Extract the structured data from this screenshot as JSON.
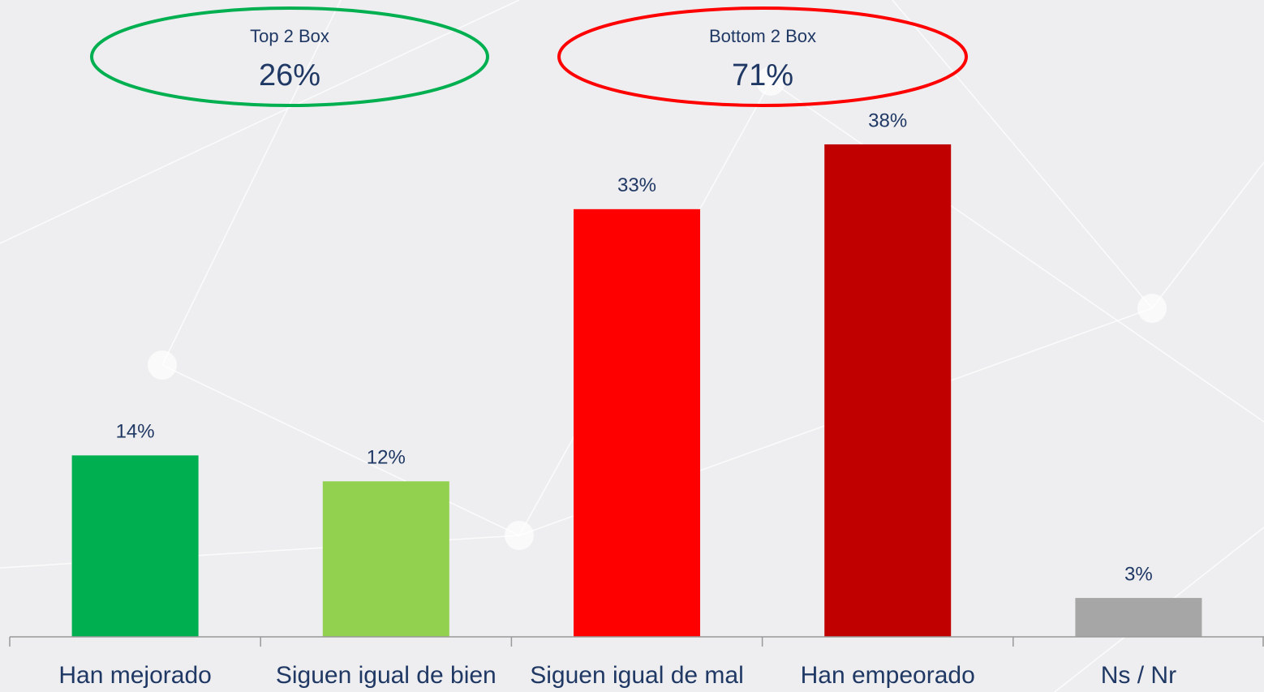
{
  "chart_data": {
    "type": "bar",
    "categories": [
      "Han mejorado",
      "Siguen igual de bien",
      "Siguen igual de mal",
      "Han empeorado",
      "Ns / Nr"
    ],
    "values": [
      14,
      12,
      33,
      38,
      3
    ],
    "value_labels": [
      "14%",
      "12%",
      "33%",
      "38%",
      "3%"
    ],
    "colors": [
      "#00b050",
      "#92d050",
      "#ff0000",
      "#c00000",
      "#a6a6a6"
    ],
    "ylim": [
      0,
      40
    ],
    "annotations": [
      {
        "text": "Top 2 Box",
        "value": 26,
        "value_label": "26%",
        "color": "#00b050"
      },
      {
        "text": "Bottom 2 Box",
        "value": 71,
        "value_label": "71%",
        "color": "#ff0000"
      }
    ]
  }
}
